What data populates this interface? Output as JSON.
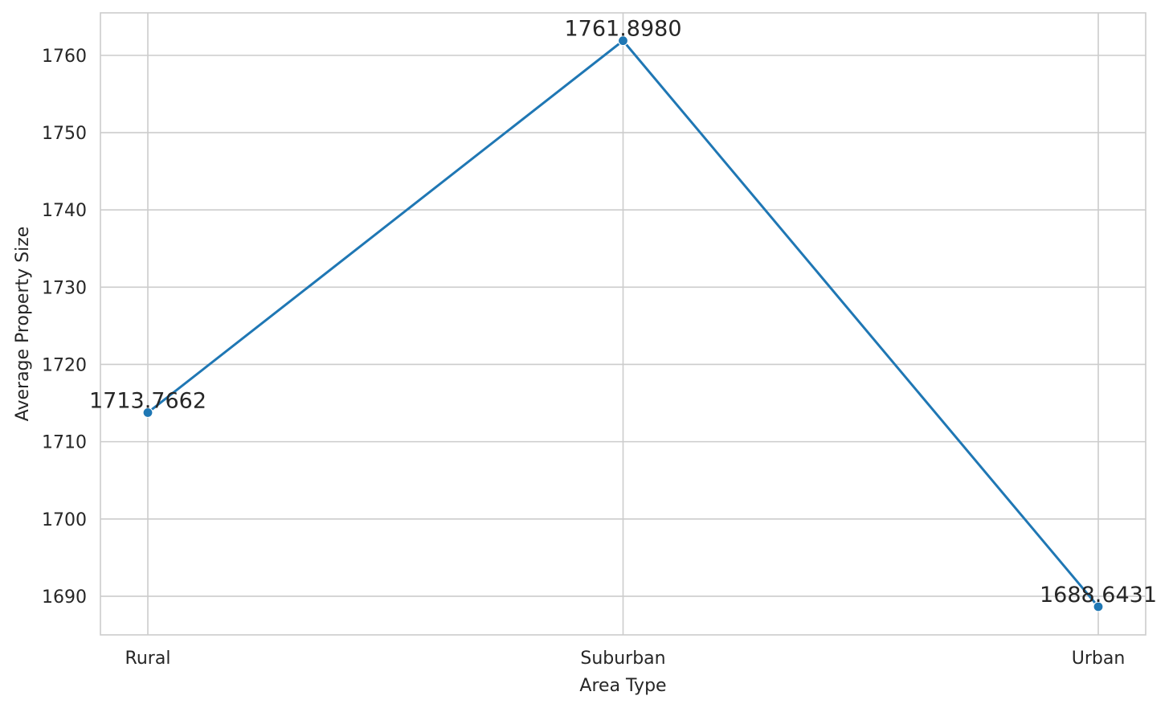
{
  "chart_data": {
    "type": "line",
    "title": "",
    "xlabel": "Area Type",
    "ylabel": "Average Property Size",
    "categories": [
      "Rural",
      "Suburban",
      "Urban"
    ],
    "series": [
      {
        "values": [
          1713.7662,
          1761.898,
          1688.6431
        ],
        "data_labels": [
          "1713.7662",
          "1761.8980",
          "1688.6431"
        ],
        "color": "#1f77b4",
        "marker": "circle"
      }
    ],
    "ylim": [
      1685,
      1765.5
    ],
    "yticks": [
      1690,
      1700,
      1710,
      1720,
      1730,
      1740,
      1750,
      1760
    ],
    "grid": true,
    "legend": "none"
  }
}
